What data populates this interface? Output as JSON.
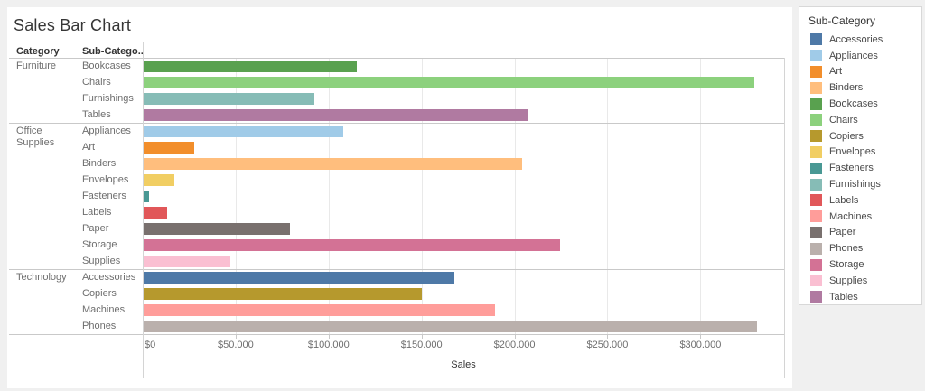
{
  "title": "Sales Bar Chart",
  "table": {
    "category_header": "Category",
    "subcategory_header": "Sub-Catego.."
  },
  "axis": {
    "label": "Sales",
    "ticks": [
      {
        "value": 0,
        "label": "$0"
      },
      {
        "value": 50000,
        "label": "$50.000"
      },
      {
        "value": 100000,
        "label": "$100.000"
      },
      {
        "value": 150000,
        "label": "$150.000"
      },
      {
        "value": 200000,
        "label": "$200.000"
      },
      {
        "value": 250000,
        "label": "$250.000"
      },
      {
        "value": 300000,
        "label": "$300.000"
      }
    ]
  },
  "legend": {
    "title": "Sub-Category",
    "items": [
      "Accessories",
      "Appliances",
      "Art",
      "Binders",
      "Bookcases",
      "Chairs",
      "Copiers",
      "Envelopes",
      "Fasteners",
      "Furnishings",
      "Labels",
      "Machines",
      "Paper",
      "Phones",
      "Storage",
      "Supplies",
      "Tables"
    ]
  },
  "chart_data": {
    "type": "bar",
    "orientation": "horizontal",
    "title": "Sales Bar Chart",
    "xlabel": "Sales",
    "xlim": [
      0,
      345000
    ],
    "x_ticks": [
      0,
      50000,
      100000,
      150000,
      200000,
      250000,
      300000
    ],
    "grid": true,
    "legend_position": "right",
    "colors": {
      "Accessories": "#4e79a7",
      "Appliances": "#a0cbe8",
      "Art": "#f28e2b",
      "Binders": "#ffbe7d",
      "Bookcases": "#59a14f",
      "Chairs": "#8cd17d",
      "Copiers": "#b6992d",
      "Envelopes": "#f1ce63",
      "Fasteners": "#499894",
      "Furnishings": "#86bcb6",
      "Labels": "#e15759",
      "Machines": "#ff9d9a",
      "Paper": "#79706e",
      "Phones": "#bab0ac",
      "Storage": "#d37295",
      "Supplies": "#fabfd2",
      "Tables": "#b07aa1"
    },
    "groups": [
      {
        "category": "Furniture",
        "rows": [
          {
            "sub_category": "Bookcases",
            "sales": 114880
          },
          {
            "sub_category": "Chairs",
            "sales": 328450
          },
          {
            "sub_category": "Furnishings",
            "sales": 91705
          },
          {
            "sub_category": "Tables",
            "sales": 206965
          }
        ]
      },
      {
        "category": "Office Supplies",
        "rows": [
          {
            "sub_category": "Appliances",
            "sales": 107530
          },
          {
            "sub_category": "Art",
            "sales": 27120
          },
          {
            "sub_category": "Binders",
            "sales": 203415
          },
          {
            "sub_category": "Envelopes",
            "sales": 16475
          },
          {
            "sub_category": "Fasteners",
            "sales": 3025
          },
          {
            "sub_category": "Labels",
            "sales": 12485
          },
          {
            "sub_category": "Paper",
            "sales": 78480
          },
          {
            "sub_category": "Storage",
            "sales": 223845
          },
          {
            "sub_category": "Supplies",
            "sales": 46675
          }
        ]
      },
      {
        "category": "Technology",
        "rows": [
          {
            "sub_category": "Accessories",
            "sales": 167380
          },
          {
            "sub_category": "Copiers",
            "sales": 149530
          },
          {
            "sub_category": "Machines",
            "sales": 189240
          },
          {
            "sub_category": "Phones",
            "sales": 330005
          }
        ]
      }
    ]
  }
}
